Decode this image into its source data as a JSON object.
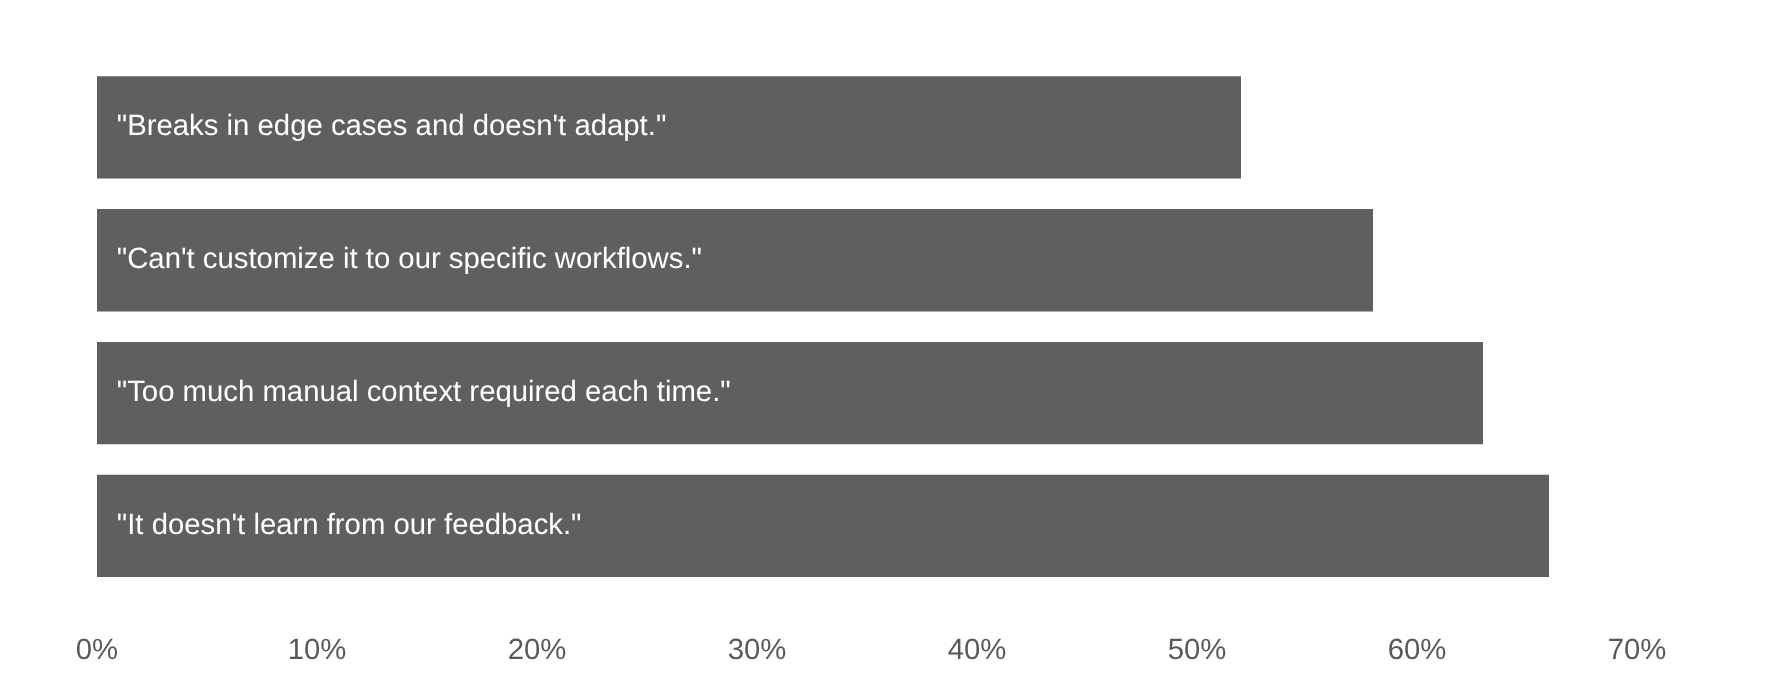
{
  "chart_data": {
    "type": "bar",
    "orientation": "horizontal",
    "categories": [
      "\"Breaks in edge cases and doesn't adapt.\"",
      "\"Can't customize it to our specific workflows.\"",
      "\"Too much manual context required each time.\"",
      "\"It doesn't learn from our feedback.\""
    ],
    "values": [
      52,
      58,
      63,
      66
    ],
    "color": "#5f5f5f",
    "xlim": [
      0,
      70
    ],
    "xticks": [
      {
        "value": 0,
        "label": "0%"
      },
      {
        "value": 10,
        "label": "10%"
      },
      {
        "value": 20,
        "label": "20%"
      },
      {
        "value": 30,
        "label": "30%"
      },
      {
        "value": 40,
        "label": "40%"
      },
      {
        "value": 50,
        "label": "50%"
      },
      {
        "value": 60,
        "label": "60%"
      },
      {
        "value": 70,
        "label": "70%"
      }
    ],
    "grid": false
  }
}
